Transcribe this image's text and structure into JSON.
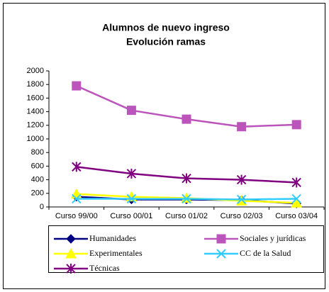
{
  "chart_data": {
    "type": "line",
    "title": "Alumnos de nuevo ingreso",
    "subtitle": "Evolución ramas",
    "categories": [
      "Curso 99/00",
      "Curso 00/01",
      "Curso 01/02",
      "Curso 02/03",
      "Curso 03/04"
    ],
    "series": [
      {
        "name": "Humanidades",
        "color": "#000080",
        "marker": "diamond",
        "values": [
          150,
          110,
          110,
          100,
          50
        ]
      },
      {
        "name": "Sociales y jurídicas",
        "color": "#bb55bb",
        "marker": "square",
        "values": [
          1780,
          1420,
          1290,
          1180,
          1210
        ]
      },
      {
        "name": "Experimentales",
        "color": "#ffff00",
        "marker": "triangle",
        "values": [
          190,
          150,
          130,
          90,
          60
        ]
      },
      {
        "name": "CC de la Salud",
        "color": "#33ccff",
        "marker": "x",
        "values": [
          120,
          120,
          120,
          110,
          120
        ]
      },
      {
        "name": "Técnicas",
        "color": "#800080",
        "marker": "asterisk",
        "values": [
          590,
          490,
          420,
          400,
          360
        ]
      }
    ],
    "ylim": [
      0,
      2000
    ],
    "yticks": [
      0,
      200,
      400,
      600,
      800,
      1000,
      1200,
      1400,
      1600,
      1800,
      2000
    ],
    "grid": false,
    "legend": "bottom"
  }
}
